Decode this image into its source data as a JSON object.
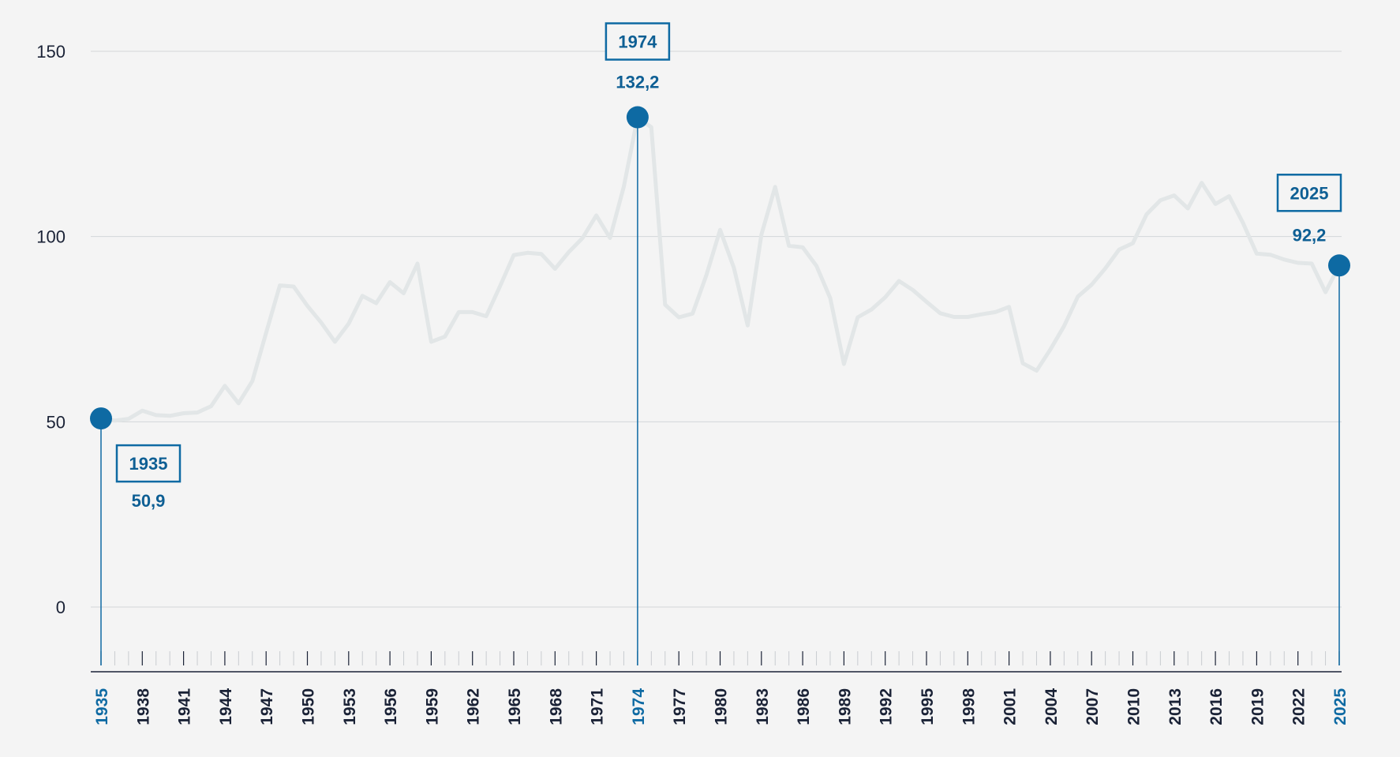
{
  "chart_data": {
    "type": "line",
    "title": "",
    "xlabel": "",
    "ylabel": "",
    "ylim": [
      -16,
      152
    ],
    "yticks": [
      "150",
      "100",
      "50",
      "0"
    ],
    "ytick_values": [
      150,
      100,
      50,
      0
    ],
    "grid": true,
    "colors": {
      "line": "#e2e6e7",
      "accent": "#0e6aa3",
      "grid": "#d3d6d9",
      "axis": "#1a2236",
      "background": "#f4f4f4"
    },
    "x": [
      1935,
      1936,
      1937,
      1938,
      1939,
      1940,
      1941,
      1942,
      1943,
      1944,
      1945,
      1946,
      1947,
      1948,
      1949,
      1950,
      1951,
      1952,
      1953,
      1954,
      1955,
      1956,
      1957,
      1958,
      1959,
      1960,
      1961,
      1962,
      1963,
      1964,
      1965,
      1966,
      1967,
      1968,
      1969,
      1970,
      1971,
      1972,
      1973,
      1974,
      1975,
      1976,
      1977,
      1978,
      1979,
      1980,
      1981,
      1982,
      1983,
      1984,
      1985,
      1986,
      1987,
      1988,
      1989,
      1990,
      1991,
      1992,
      1993,
      1994,
      1995,
      1996,
      1997,
      1998,
      1999,
      2000,
      2001,
      2002,
      2003,
      2004,
      2005,
      2006,
      2007,
      2008,
      2009,
      2010,
      2011,
      2012,
      2013,
      2014,
      2015,
      2016,
      2017,
      2018,
      2019,
      2020,
      2021,
      2022,
      2023,
      2024,
      2025
    ],
    "series": [
      {
        "values": [
          50.9,
          50.3,
          50.8,
          53.0,
          51.8,
          51.6,
          52.3,
          52.5,
          54.2,
          59.7,
          55.0,
          61.0,
          74.0,
          86.8,
          86.5,
          81.3,
          76.8,
          71.6,
          76.5,
          84.0,
          82.0,
          87.7,
          84.7,
          92.7,
          71.6,
          73.0,
          79.6,
          79.6,
          78.5,
          86.6,
          95.0,
          95.6,
          95.3,
          91.3,
          95.8,
          99.6,
          105.7,
          99.6,
          113.5,
          132.2,
          129.5,
          81.6,
          78.2,
          79.2,
          89.6,
          101.8,
          91.6,
          76.0,
          100.5,
          113.4,
          97.5,
          97.1,
          92.1,
          83.4,
          65.6,
          78.2,
          80.3,
          83.6,
          88.0,
          85.6,
          82.4,
          79.3,
          78.3,
          78.3,
          79.0,
          79.6,
          81.0,
          65.8,
          63.8,
          69.5,
          75.8,
          83.8,
          87.0,
          91.4,
          96.5,
          98.2,
          106.0,
          109.8,
          111.1,
          107.6,
          114.5,
          108.8,
          110.9,
          103.7,
          95.4,
          95.1,
          93.8,
          92.9,
          92.7,
          85.0,
          92.2
        ]
      }
    ],
    "xtick_labels": [
      "1935",
      "1938",
      "1941",
      "1944",
      "1947",
      "1950",
      "1953",
      "1956",
      "1959",
      "1962",
      "1965",
      "1968",
      "1971",
      "1974",
      "1977",
      "1980",
      "1983",
      "1986",
      "1989",
      "1992",
      "1995",
      "1998",
      "2001",
      "2004",
      "2007",
      "2010",
      "2013",
      "2016",
      "2019",
      "2022",
      "2025"
    ],
    "highlight_years": [
      "1935",
      "1974",
      "2025"
    ],
    "annotations": [
      {
        "x": 1935,
        "y": 50.9,
        "year": "1935",
        "value": "50,9",
        "placement": "below-right"
      },
      {
        "x": 1974,
        "y": 132.2,
        "year": "1974",
        "value": "132,2",
        "placement": "above"
      },
      {
        "x": 2025,
        "y": 92.2,
        "year": "2025",
        "value": "92,2",
        "placement": "above-left"
      }
    ]
  }
}
